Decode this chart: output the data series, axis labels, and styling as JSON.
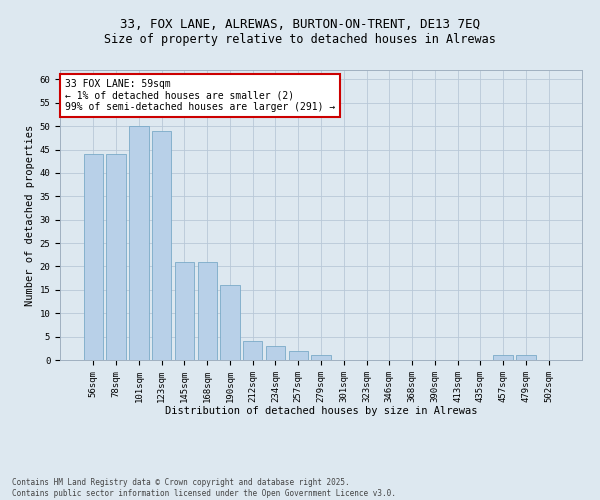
{
  "title1": "33, FOX LANE, ALREWAS, BURTON-ON-TRENT, DE13 7EQ",
  "title2": "Size of property relative to detached houses in Alrewas",
  "xlabel": "Distribution of detached houses by size in Alrewas",
  "ylabel": "Number of detached properties",
  "categories": [
    "56sqm",
    "78sqm",
    "101sqm",
    "123sqm",
    "145sqm",
    "168sqm",
    "190sqm",
    "212sqm",
    "234sqm",
    "257sqm",
    "279sqm",
    "301sqm",
    "323sqm",
    "346sqm",
    "368sqm",
    "390sqm",
    "413sqm",
    "435sqm",
    "457sqm",
    "479sqm",
    "502sqm"
  ],
  "values": [
    44,
    44,
    50,
    49,
    21,
    21,
    16,
    4,
    3,
    2,
    1,
    0,
    0,
    0,
    0,
    0,
    0,
    0,
    1,
    1,
    0
  ],
  "bar_color": "#b8d0e8",
  "bar_edge_color": "#7aaac8",
  "annotation_box_color": "#ffffff",
  "annotation_box_edge_color": "#cc0000",
  "annotation_text": "33 FOX LANE: 59sqm\n← 1% of detached houses are smaller (2)\n99% of semi-detached houses are larger (291) →",
  "ylim": [
    0,
    62
  ],
  "yticks": [
    0,
    5,
    10,
    15,
    20,
    25,
    30,
    35,
    40,
    45,
    50,
    55,
    60
  ],
  "background_color": "#dde8f0",
  "plot_background_color": "#dde8f0",
  "footer": "Contains HM Land Registry data © Crown copyright and database right 2025.\nContains public sector information licensed under the Open Government Licence v3.0.",
  "title_fontsize": 9,
  "subtitle_fontsize": 8.5,
  "axis_label_fontsize": 7.5,
  "tick_fontsize": 6.5,
  "annotation_fontsize": 7,
  "footer_fontsize": 5.5
}
